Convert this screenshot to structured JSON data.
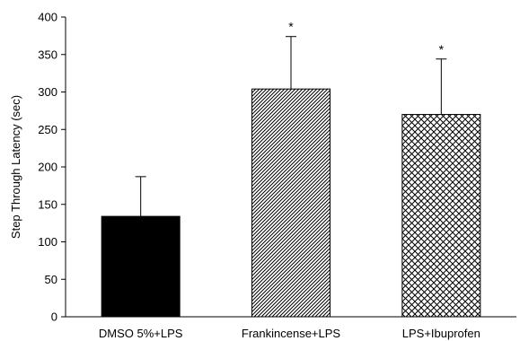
{
  "chart_data": {
    "type": "bar",
    "ylabel": "Step Through Latency (sec)",
    "ylim": [
      0,
      400
    ],
    "yticks": [
      0,
      50,
      100,
      150,
      200,
      250,
      300,
      350,
      400
    ],
    "categories": [
      "DMSO 5%+LPS",
      "Frankincense+LPS",
      "LPS+Ibuprofen"
    ],
    "values": [
      134,
      304,
      270
    ],
    "error_upper": [
      53,
      70,
      74
    ],
    "significance": [
      "",
      "*",
      "*"
    ],
    "bar_styles": [
      "solid-black",
      "diagonal-hatch",
      "crosshatch"
    ],
    "grid": false,
    "legend": "none"
  }
}
